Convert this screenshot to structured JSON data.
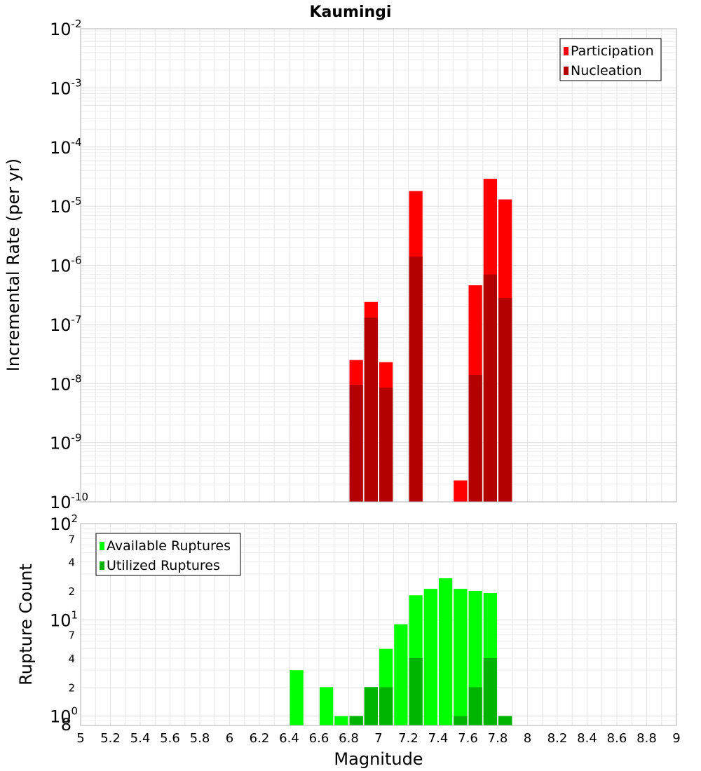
{
  "chart_data": [
    {
      "type": "bar",
      "title": "Kaumingi",
      "xlabel": "",
      "ylabel": "Incremental Rate (per yr)",
      "yscale": "log",
      "ylim": [
        1e-10,
        0.01
      ],
      "xlim": [
        5,
        9
      ],
      "y_tick_labels": [
        {
          "base": "10",
          "exp": "-10",
          "value": 1e-10
        },
        {
          "base": "10",
          "exp": "-9",
          "value": 1e-09
        },
        {
          "base": "10",
          "exp": "-8",
          "value": 1e-08
        },
        {
          "base": "10",
          "exp": "-7",
          "value": 1e-07
        },
        {
          "base": "10",
          "exp": "-6",
          "value": 1e-06
        },
        {
          "base": "10",
          "exp": "-5",
          "value": 1e-05
        },
        {
          "base": "10",
          "exp": "-4",
          "value": 0.0001
        },
        {
          "base": "10",
          "exp": "-3",
          "value": 0.001
        },
        {
          "base": "10",
          "exp": "-2",
          "value": 0.01
        }
      ],
      "grid": true,
      "legend_position": "top-right",
      "bar_width": 0.1,
      "series": [
        {
          "name": "Participation",
          "color": "#ff0000",
          "x": [
            6.85,
            6.95,
            7.05,
            7.25,
            7.55,
            7.65,
            7.75,
            7.85
          ],
          "values": [
            2.5e-08,
            2.4e-07,
            2.3e-08,
            1.8e-05,
            2.3e-10,
            4.6e-07,
            2.9e-05,
            1.3e-05
          ]
        },
        {
          "name": "Nucleation",
          "color": "#b30000",
          "x": [
            6.85,
            6.95,
            7.05,
            7.25,
            7.65,
            7.75,
            7.85
          ],
          "values": [
            9.5e-09,
            1.3e-07,
            8.5e-09,
            1.4e-06,
            1.4e-08,
            7e-07,
            2.8e-07
          ]
        }
      ]
    },
    {
      "type": "bar",
      "title": "",
      "xlabel": "Magnitude",
      "ylabel": "Rupture Count",
      "yscale": "log",
      "ylim": [
        0.8,
        100
      ],
      "xlim": [
        5,
        9
      ],
      "x_tick_labels": [
        "5",
        "5.2",
        "5.4",
        "5.6",
        "5.8",
        "6",
        "6.2",
        "6.4",
        "6.6",
        "6.8",
        "7",
        "7.2",
        "7.4",
        "7.6",
        "7.8",
        "8",
        "8.2",
        "8.4",
        "8.6",
        "8.8",
        "9"
      ],
      "y_tick_labels": [
        {
          "base": "10",
          "exp": "0",
          "value": 1
        },
        {
          "base": "10",
          "exp": "1",
          "value": 10
        },
        {
          "base": "10",
          "exp": "2",
          "value": 100
        }
      ],
      "y_minor_labels": [
        {
          "label": "8",
          "value": 0.8
        },
        {
          "label": "2",
          "value": 2
        },
        {
          "label": "4",
          "value": 4
        },
        {
          "label": "7",
          "value": 7
        },
        {
          "label": "2",
          "value": 20
        },
        {
          "label": "4",
          "value": 40
        },
        {
          "label": "7",
          "value": 70
        }
      ],
      "grid": true,
      "legend_position": "top-left",
      "bar_width": 0.1,
      "series": [
        {
          "name": "Available Ruptures",
          "color": "#00ff00",
          "x": [
            6.45,
            6.65,
            6.75,
            6.85,
            6.95,
            7.05,
            7.15,
            7.25,
            7.35,
            7.45,
            7.55,
            7.65,
            7.75,
            7.85
          ],
          "values": [
            3,
            2,
            1,
            1,
            2,
            5,
            9,
            18,
            21,
            27,
            21,
            20,
            19,
            1
          ]
        },
        {
          "name": "Utilized Ruptures",
          "color": "#00b300",
          "x": [
            6.85,
            6.95,
            7.05,
            7.25,
            7.55,
            7.65,
            7.75,
            7.85
          ],
          "values": [
            1,
            2,
            2,
            4,
            1,
            2,
            4,
            1
          ]
        }
      ]
    }
  ]
}
